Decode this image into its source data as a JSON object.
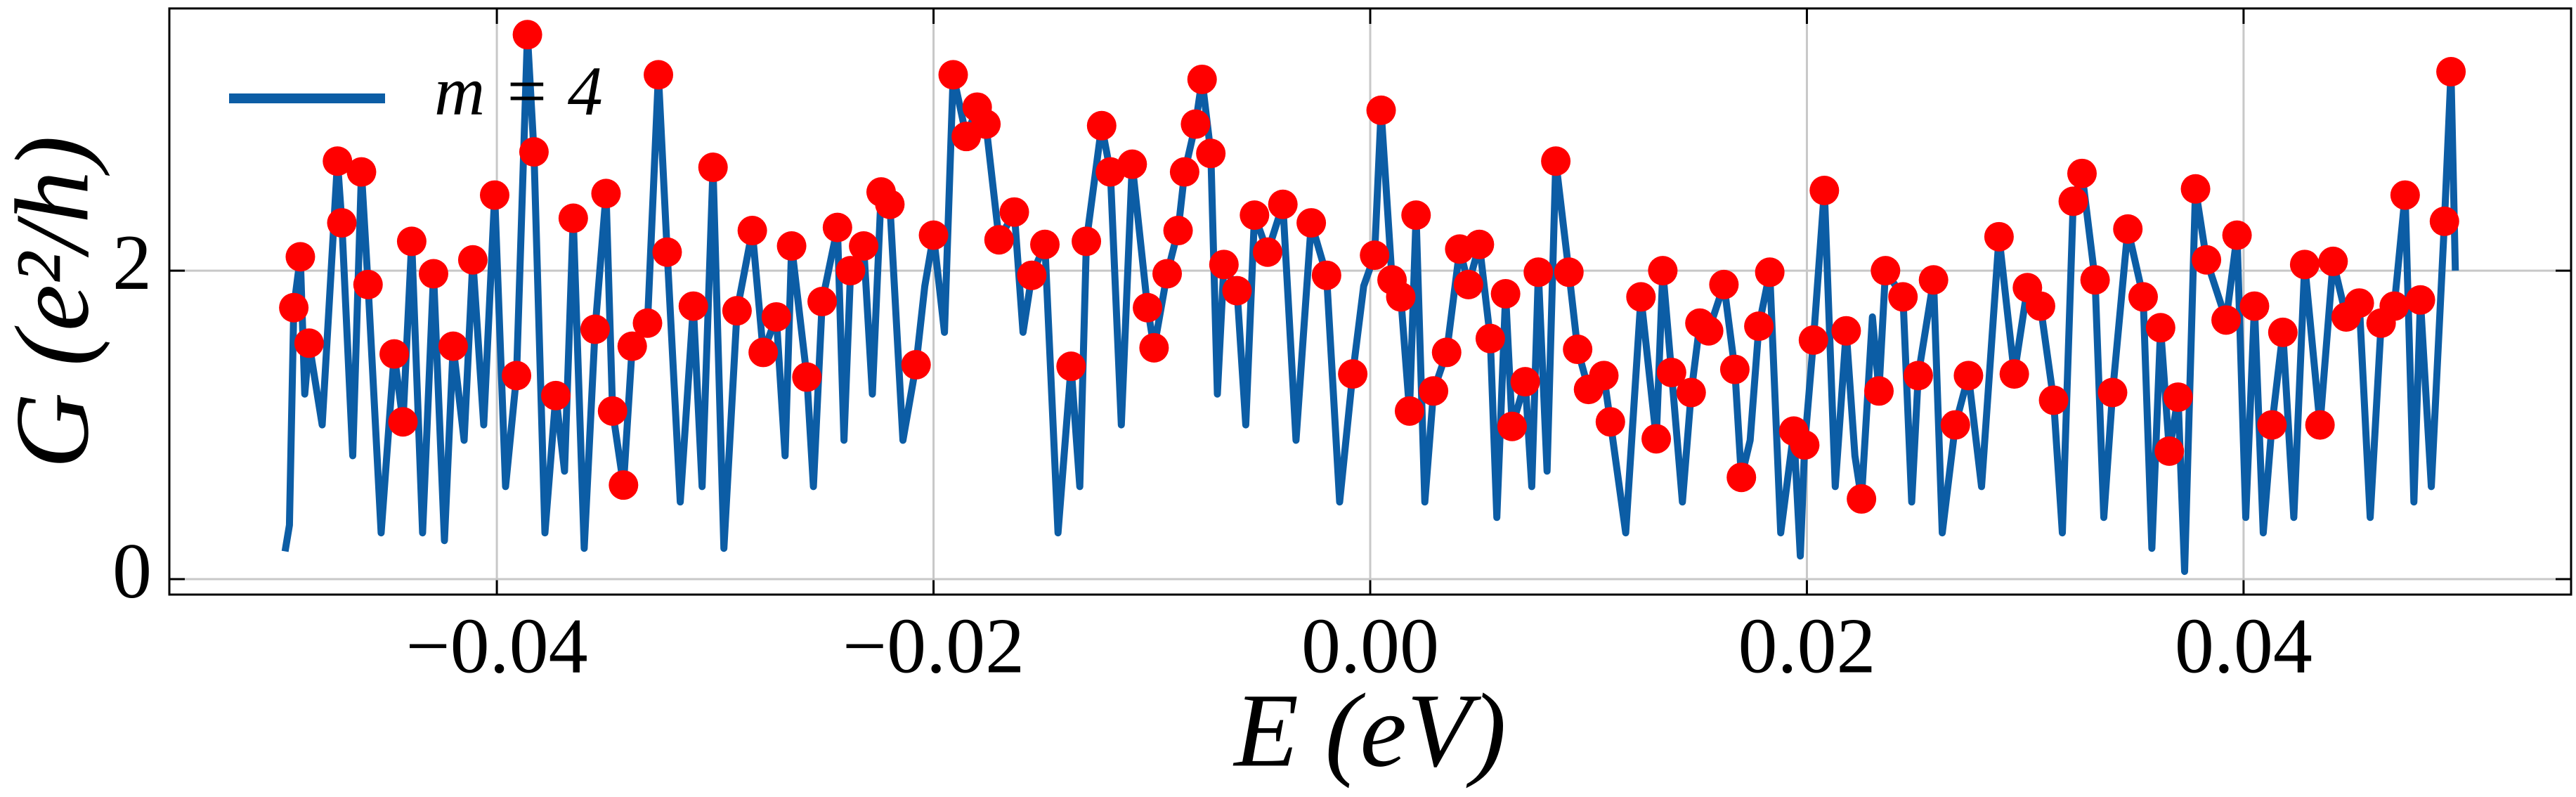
{
  "chart_data": {
    "type": "line",
    "xlabel": "E (eV)",
    "ylabel": "G (e²/h)",
    "xlim": [
      -0.055,
      0.055
    ],
    "ylim": [
      -0.1,
      3.7
    ],
    "xticks": [
      {
        "value": -0.04,
        "label": "−0.04"
      },
      {
        "value": -0.02,
        "label": "−0.02"
      },
      {
        "value": 0,
        "label": "0.00"
      },
      {
        "value": 0.02,
        "label": "0.02"
      },
      {
        "value": 0.04,
        "label": "0.04"
      }
    ],
    "yticks": [
      0,
      2
    ],
    "grid": true,
    "legend": "upper left",
    "series": [
      {
        "name": "m = 4",
        "color": "#0c5da5",
        "mode": "line",
        "x": [
          -0.0497,
          -0.0495,
          -0.0493,
          -0.049,
          -0.0488,
          -0.0486,
          -0.048,
          -0.0473,
          -0.0471,
          -0.0466,
          -0.0462,
          -0.0459,
          -0.0453,
          -0.0447,
          -0.0443,
          -0.0439,
          -0.0434,
          -0.0429,
          -0.0424,
          -0.042,
          -0.0415,
          -0.0411,
          -0.0406,
          -0.0401,
          -0.0396,
          -0.0391,
          -0.0386,
          -0.0383,
          -0.0378,
          -0.0373,
          -0.0369,
          -0.0365,
          -0.036,
          -0.0355,
          -0.035,
          -0.0347,
          -0.0342,
          -0.0338,
          -0.0331,
          -0.0326,
          -0.0322,
          -0.0316,
          -0.031,
          -0.0306,
          -0.0301,
          -0.0296,
          -0.029,
          -0.0283,
          -0.0278,
          -0.0272,
          -0.0268,
          -0.0265,
          -0.0258,
          -0.0255,
          -0.0251,
          -0.0244,
          -0.0241,
          -0.0238,
          -0.0232,
          -0.0228,
          -0.0224,
          -0.022,
          -0.0214,
          -0.0208,
          -0.0204,
          -0.02,
          -0.0195,
          -0.0191,
          -0.0185,
          -0.018,
          -0.0176,
          -0.017,
          -0.0163,
          -0.0159,
          -0.0155,
          -0.0149,
          -0.0143,
          -0.0137,
          -0.0133,
          -0.013,
          -0.0123,
          -0.0119,
          -0.0114,
          -0.0109,
          -0.0102,
          -0.0099,
          -0.0093,
          -0.0088,
          -0.0085,
          -0.008,
          -0.0077,
          -0.0073,
          -0.007,
          -0.0067,
          -0.0061,
          -0.0057,
          -0.0053,
          -0.0047,
          -0.004,
          -0.0034,
          -0.0027,
          -0.002,
          -0.0014,
          -0.0008,
          -0.0003,
          0.0002,
          0.0005,
          0.001,
          0.0014,
          0.0018,
          0.0021,
          0.0025,
          0.0029,
          0.0035,
          0.0041,
          0.0045,
          0.005,
          0.0055,
          0.0058,
          0.0062,
          0.0065,
          0.0071,
          0.0074,
          0.0077,
          0.0081,
          0.0085,
          0.0091,
          0.0095,
          0.01,
          0.0107,
          0.011,
          0.0117,
          0.0124,
          0.0131,
          0.0134,
          0.0138,
          0.0143,
          0.0147,
          0.0151,
          0.0155,
          0.0162,
          0.0167,
          0.017,
          0.0174,
          0.0178,
          0.0183,
          0.0188,
          0.0194,
          0.0197,
          0.0199,
          0.0203,
          0.0208,
          0.0213,
          0.0218,
          0.0222,
          0.0225,
          0.023,
          0.0233,
          0.0236,
          0.0244,
          0.0248,
          0.0251,
          0.0258,
          0.0262,
          0.0268,
          0.0274,
          0.028,
          0.0288,
          0.0295,
          0.0301,
          0.0307,
          0.0313,
          0.0317,
          0.0322,
          0.0326,
          0.0332,
          0.0336,
          0.034,
          0.0347,
          0.0354,
          0.0358,
          0.0362,
          0.0366,
          0.037,
          0.0373,
          0.0378,
          0.0383,
          0.0392,
          0.0397,
          0.0401,
          0.0405,
          0.0409,
          0.0413,
          0.0418,
          0.0423,
          0.0428,
          0.0435,
          0.0441,
          0.0447,
          0.0453,
          0.0458,
          0.0463,
          0.0469,
          0.0474,
          0.0478,
          0.0481,
          0.0486,
          0.0492,
          0.0495,
          0.0497
        ],
        "values": [
          0.18,
          0.35,
          1.76,
          2.09,
          1.2,
          1.53,
          1.0,
          2.71,
          2.31,
          0.8,
          2.64,
          1.91,
          0.3,
          1.46,
          1.02,
          2.19,
          0.3,
          1.98,
          0.25,
          1.51,
          0.9,
          2.07,
          1.0,
          2.49,
          0.6,
          1.32,
          3.53,
          2.77,
          0.3,
          1.19,
          0.7,
          2.34,
          0.2,
          1.62,
          2.5,
          1.09,
          0.61,
          1.51,
          1.66,
          3.27,
          2.12,
          0.5,
          1.77,
          0.6,
          2.67,
          0.2,
          1.74,
          2.26,
          1.47,
          1.7,
          0.8,
          2.16,
          1.31,
          0.6,
          1.8,
          2.28,
          0.9,
          2.0,
          2.16,
          1.2,
          2.51,
          2.43,
          0.9,
          1.39,
          1.9,
          2.23,
          1.6,
          3.27,
          2.87,
          3.06,
          2.95,
          2.2,
          2.38,
          1.6,
          1.97,
          2.17,
          0.3,
          1.38,
          0.6,
          2.19,
          2.94,
          2.64,
          1.0,
          2.69,
          1.76,
          1.5,
          1.98,
          2.26,
          2.64,
          2.95,
          3.24,
          2.76,
          1.2,
          2.04,
          1.87,
          1.0,
          2.36,
          2.12,
          2.43,
          0.9,
          2.31,
          1.97,
          0.5,
          1.33,
          1.9,
          2.1,
          3.04,
          1.94,
          1.83,
          1.09,
          2.36,
          0.5,
          1.22,
          1.47,
          2.14,
          1.91,
          2.17,
          1.56,
          0.4,
          1.85,
          0.99,
          1.28,
          0.6,
          1.99,
          0.7,
          2.71,
          1.99,
          1.49,
          1.23,
          1.32,
          1.02,
          0.3,
          1.83,
          0.91,
          2.0,
          1.34,
          0.5,
          1.21,
          1.66,
          1.61,
          1.91,
          1.36,
          0.66,
          0.9,
          1.64,
          1.99,
          0.3,
          0.96,
          0.15,
          0.87,
          1.55,
          2.52,
          0.6,
          1.61,
          0.8,
          0.52,
          1.7,
          1.22,
          2.0,
          1.83,
          0.5,
          1.32,
          1.94,
          0.3,
          1.0,
          1.32,
          0.6,
          2.22,
          1.33,
          1.89,
          1.77,
          1.16,
          0.3,
          2.45,
          2.63,
          1.94,
          0.4,
          1.21,
          2.27,
          1.83,
          0.2,
          1.63,
          0.83,
          1.18,
          0.05,
          2.53,
          2.07,
          1.68,
          2.23,
          0.4,
          1.77,
          0.3,
          1.0,
          1.6,
          0.4,
          2.04,
          1.0,
          2.06,
          1.7,
          1.79,
          0.4,
          1.66,
          1.77,
          2.49,
          0.5,
          1.81,
          0.6,
          2.32,
          3.29,
          2.0
        ]
      },
      {
        "color": "#ff0000",
        "mode": "markers",
        "x": [
          -0.0493,
          -0.049,
          -0.0486,
          -0.0473,
          -0.0471,
          -0.0462,
          -0.0459,
          -0.0447,
          -0.0443,
          -0.0439,
          -0.0429,
          -0.042,
          -0.0411,
          -0.0401,
          -0.0391,
          -0.0386,
          -0.0383,
          -0.0373,
          -0.0365,
          -0.0355,
          -0.035,
          -0.0347,
          -0.0342,
          -0.0338,
          -0.0331,
          -0.0326,
          -0.0322,
          -0.031,
          -0.0301,
          -0.029,
          -0.0283,
          -0.0278,
          -0.0272,
          -0.0265,
          -0.0258,
          -0.0251,
          -0.0244,
          -0.0238,
          -0.0232,
          -0.0224,
          -0.022,
          -0.0208,
          -0.02,
          -0.0191,
          -0.0185,
          -0.018,
          -0.0176,
          -0.017,
          -0.0163,
          -0.0155,
          -0.0149,
          -0.0137,
          -0.013,
          -0.0123,
          -0.0119,
          -0.0109,
          -0.0102,
          -0.0099,
          -0.0093,
          -0.0088,
          -0.0085,
          -0.008,
          -0.0077,
          -0.0073,
          -0.0067,
          -0.0061,
          -0.0053,
          -0.0047,
          -0.004,
          -0.0027,
          -0.002,
          -0.0008,
          0.0002,
          0.0005,
          0.001,
          0.0014,
          0.0018,
          0.0021,
          0.0029,
          0.0035,
          0.0041,
          0.0045,
          0.005,
          0.0055,
          0.0062,
          0.0065,
          0.0071,
          0.0077,
          0.0085,
          0.0091,
          0.0095,
          0.01,
          0.0107,
          0.011,
          0.0124,
          0.0131,
          0.0134,
          0.0138,
          0.0147,
          0.0151,
          0.0155,
          0.0162,
          0.0167,
          0.017,
          0.0178,
          0.0183,
          0.0194,
          0.0199,
          0.0203,
          0.0208,
          0.0218,
          0.0225,
          0.0233,
          0.0236,
          0.0244,
          0.0251,
          0.0258,
          0.0268,
          0.0274,
          0.0288,
          0.0295,
          0.0301,
          0.0307,
          0.0313,
          0.0322,
          0.0326,
          0.0332,
          0.034,
          0.0347,
          0.0354,
          0.0362,
          0.0366,
          0.037,
          0.0378,
          0.0383,
          0.0392,
          0.0397,
          0.0405,
          0.0413,
          0.0418,
          0.0428,
          0.0435,
          0.0441,
          0.0447,
          0.0453,
          0.0463,
          0.0469,
          0.0474,
          0.0481,
          0.0492,
          0.0495
        ],
        "values": [
          1.76,
          2.09,
          1.53,
          2.71,
          2.31,
          2.64,
          1.91,
          1.46,
          1.02,
          2.19,
          1.98,
          1.51,
          2.07,
          2.49,
          1.32,
          3.53,
          2.77,
          1.19,
          2.34,
          1.62,
          2.5,
          1.09,
          0.61,
          1.51,
          1.66,
          3.27,
          2.12,
          1.77,
          2.67,
          1.74,
          2.26,
          1.47,
          1.7,
          2.16,
          1.31,
          1.8,
          2.28,
          2.0,
          2.16,
          2.51,
          2.43,
          1.39,
          2.23,
          3.27,
          2.87,
          3.06,
          2.95,
          2.2,
          2.38,
          1.97,
          2.17,
          1.38,
          2.19,
          2.94,
          2.64,
          2.69,
          1.76,
          1.5,
          1.98,
          2.26,
          2.64,
          2.95,
          3.24,
          2.76,
          2.04,
          1.87,
          2.36,
          2.12,
          2.43,
          2.31,
          1.97,
          1.33,
          2.1,
          3.04,
          1.94,
          1.83,
          1.09,
          2.36,
          1.22,
          1.47,
          2.14,
          1.91,
          2.17,
          1.56,
          1.85,
          0.99,
          1.28,
          1.99,
          2.71,
          1.99,
          1.49,
          1.23,
          1.32,
          1.02,
          1.83,
          0.91,
          2.0,
          1.34,
          1.21,
          1.66,
          1.61,
          1.91,
          1.36,
          0.66,
          1.64,
          1.99,
          0.96,
          0.87,
          1.55,
          2.52,
          1.61,
          0.52,
          1.22,
          2.0,
          1.83,
          1.32,
          1.94,
          1.0,
          1.32,
          2.22,
          1.33,
          1.89,
          1.77,
          1.16,
          2.45,
          2.63,
          1.94,
          1.21,
          2.27,
          1.83,
          1.63,
          0.83,
          1.18,
          2.53,
          2.07,
          1.68,
          2.23,
          1.77,
          1.0,
          1.6,
          2.04,
          1.0,
          2.06,
          1.7,
          1.79,
          1.66,
          1.77,
          2.49,
          1.81,
          2.32,
          3.29
        ]
      }
    ]
  }
}
